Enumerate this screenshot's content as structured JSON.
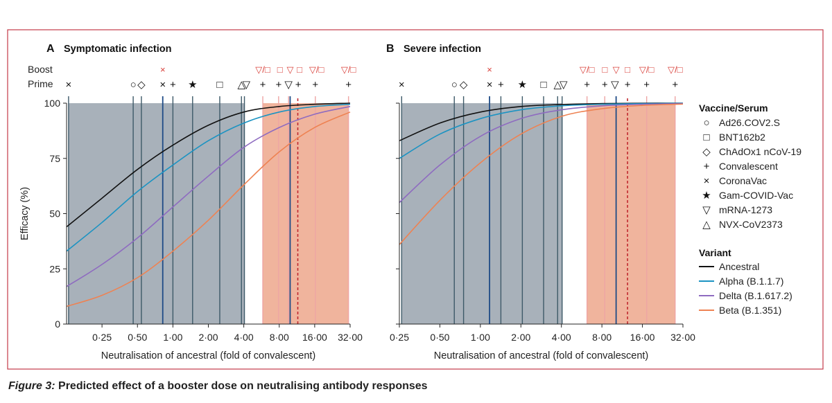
{
  "caption": {
    "figure_label": "Figure 3:",
    "text": "Predicted effect of a booster dose on neutralising antibody responses"
  },
  "row_labels": {
    "boost": "Boost",
    "prime": "Prime"
  },
  "colors": {
    "grey_band": "#a8b1ba",
    "orange_band": "#f0b49d",
    "frame": "#c33a48",
    "marker_red": "#d9403a",
    "ancestral": "#111111",
    "alpha": "#1b93c2",
    "delta": "#8e6bc0",
    "beta": "#ee8252",
    "vline": "#3d5968",
    "vline_strong": "#1e4b86",
    "vline_orange": "#eea5a4",
    "dashed": "#c0282f"
  },
  "legend": {
    "vaccine_title": "Vaccine/Serum",
    "vaccine_items": [
      {
        "label": "Ad26.COV2.S",
        "icon": "circle-icon"
      },
      {
        "label": "BNT162b2",
        "icon": "square-icon"
      },
      {
        "label": "ChAdOx1 nCoV-19",
        "icon": "diamond-icon"
      },
      {
        "label": "Convalescent",
        "icon": "plus-icon"
      },
      {
        "label": "CoronaVac",
        "icon": "cross-icon"
      },
      {
        "label": "Gam-COVID-Vac",
        "icon": "star-icon"
      },
      {
        "label": "mRNA-1273",
        "icon": "triangle-down-icon"
      },
      {
        "label": "NVX-CoV2373",
        "icon": "triangle-up-icon"
      }
    ],
    "variant_title": "Variant",
    "variant_items": [
      {
        "label": "Ancestral",
        "color": "#111111"
      },
      {
        "label": "Alpha (B.1.1.7)",
        "color": "#1b93c2"
      },
      {
        "label": "Delta (B.1.617.2)",
        "color": "#8e6bc0"
      },
      {
        "label": "Beta (B.1.351)",
        "color": "#ee8252"
      }
    ]
  },
  "chart_data": [
    {
      "type": "line",
      "panel_letter": "A",
      "title": "Symptomatic infection",
      "xlabel": "Neutralisation of ancestral (fold of convalescent)",
      "ylabel": "Efficacy (%)",
      "x_scale": "log2",
      "xlim": [
        0.125,
        32
      ],
      "ylim": [
        0,
        100
      ],
      "x_ticks": [
        0.25,
        0.5,
        1,
        2,
        4,
        8,
        16,
        32
      ],
      "x_tick_labels": [
        "0·25",
        "0·50",
        "1·00",
        "2·00",
        "4·00",
        "8·00",
        "16·00",
        "32·00"
      ],
      "y_ticks": [
        0,
        25,
        50,
        75,
        100
      ],
      "y_tick_labels": [
        "0",
        "25",
        "50",
        "75",
        "100"
      ],
      "grey_band": [
        0.13,
        4.05
      ],
      "orange_band": [
        5.8,
        31
      ],
      "dashed_line": 11.5,
      "series": [
        {
          "name": "Ancestral",
          "x": [
            0.125,
            0.25,
            0.5,
            1,
            2,
            4,
            8,
            16,
            32
          ],
          "y": [
            44,
            57,
            70,
            81,
            90,
            96,
            98.5,
            99.5,
            100
          ]
        },
        {
          "name": "Alpha (B.1.1.7)",
          "x": [
            0.125,
            0.25,
            0.5,
            1,
            2,
            4,
            8,
            16,
            32
          ],
          "y": [
            33,
            46,
            60,
            72,
            83,
            91,
            96,
            98.5,
            99.5
          ]
        },
        {
          "name": "Delta (B.1.617.2)",
          "x": [
            0.125,
            0.25,
            0.5,
            1,
            2,
            4,
            8,
            16,
            32
          ],
          "y": [
            17,
            27,
            39,
            53,
            67,
            80,
            89,
            95,
            98.5
          ]
        },
        {
          "name": "Beta (B.1.351)",
          "x": [
            0.125,
            0.25,
            0.5,
            1,
            2,
            4,
            8,
            16,
            32
          ],
          "y": [
            8,
            13,
            21,
            33,
            47,
            63,
            78,
            89,
            96
          ]
        }
      ],
      "prime_markers": [
        {
          "x": 0.13,
          "symbol": "×",
          "vaccine": "CoronaVac"
        },
        {
          "x": 0.46,
          "symbol": "○",
          "vaccine": "Ad26.COV2.S"
        },
        {
          "x": 0.54,
          "symbol": "◇",
          "vaccine": "ChAdOx1 nCoV-19"
        },
        {
          "x": 0.82,
          "symbol": "×",
          "vaccine": "CoronaVac"
        },
        {
          "x": 1.0,
          "symbol": "+",
          "vaccine": "Convalescent"
        },
        {
          "x": 1.47,
          "symbol": "★",
          "vaccine": "Gam-COVID-Vac"
        },
        {
          "x": 2.5,
          "symbol": "□",
          "vaccine": "BNT162b2"
        },
        {
          "x": 3.82,
          "symbol": "△",
          "vaccine": "NVX-CoV2373"
        },
        {
          "x": 4.2,
          "symbol": "▽",
          "vaccine": "mRNA-1273"
        },
        {
          "x": 5.8,
          "symbol": "+",
          "vaccine": "Convalescent"
        },
        {
          "x": 7.9,
          "symbol": "+",
          "vaccine": "Convalescent"
        },
        {
          "x": 9.6,
          "symbol": "▽",
          "vaccine": "mRNA-1273"
        },
        {
          "x": 11.6,
          "symbol": "+",
          "vaccine": "Convalescent"
        },
        {
          "x": 16.2,
          "symbol": "+",
          "vaccine": "Convalescent"
        },
        {
          "x": 31,
          "symbol": "+",
          "vaccine": "Convalescent"
        }
      ],
      "boost_markers": [
        {
          "x": 0.82,
          "symbol": "×"
        },
        {
          "x": 5.8,
          "symbol": "▽/□"
        },
        {
          "x": 8.1,
          "symbol": "□"
        },
        {
          "x": 9.9,
          "symbol": "▽"
        },
        {
          "x": 11.9,
          "symbol": "□"
        },
        {
          "x": 16.6,
          "symbol": "▽/□"
        },
        {
          "x": 31,
          "symbol": "▽/□"
        }
      ],
      "vlines": [
        {
          "x": 0.13,
          "style": "grey"
        },
        {
          "x": 0.46,
          "style": "grey"
        },
        {
          "x": 0.54,
          "style": "grey"
        },
        {
          "x": 0.82,
          "style": "strong"
        },
        {
          "x": 1.0,
          "style": "grey"
        },
        {
          "x": 1.47,
          "style": "grey"
        },
        {
          "x": 2.5,
          "style": "grey"
        },
        {
          "x": 3.82,
          "style": "grey"
        },
        {
          "x": 4.05,
          "style": "grey"
        },
        {
          "x": 5.8,
          "style": "orange"
        },
        {
          "x": 7.9,
          "style": "orange"
        },
        {
          "x": 9.6,
          "style": "orange"
        },
        {
          "x": 9.9,
          "style": "strong"
        },
        {
          "x": 16.2,
          "style": "orange"
        },
        {
          "x": 31,
          "style": "orange"
        }
      ]
    },
    {
      "type": "line",
      "panel_letter": "B",
      "title": "Severe infection",
      "xlabel": "Neutralisation of ancestral (fold of convalescent)",
      "ylabel": "",
      "x_scale": "log2",
      "xlim": [
        0.25,
        32
      ],
      "ylim": [
        0,
        100
      ],
      "x_ticks": [
        0.25,
        0.5,
        1,
        2,
        4,
        8,
        16,
        32
      ],
      "x_tick_labels": [
        "0·25",
        "0·50",
        "1·00",
        "2·00",
        "4·00",
        "8·00",
        "16·00",
        "32·00"
      ],
      "y_ticks": [
        0,
        25,
        50,
        75,
        100
      ],
      "grey_band": [
        0.26,
        4.05
      ],
      "orange_band": [
        6.2,
        28
      ],
      "dashed_line": 12.4,
      "series": [
        {
          "name": "Ancestral",
          "x": [
            0.25,
            0.5,
            1,
            2,
            4,
            8,
            16,
            32
          ],
          "y": [
            83,
            91,
            96,
            98.5,
            99.4,
            99.8,
            100,
            100
          ]
        },
        {
          "name": "Alpha (B.1.1.7)",
          "x": [
            0.25,
            0.5,
            1,
            2,
            4,
            8,
            16,
            32
          ],
          "y": [
            75,
            86,
            93,
            97,
            98.8,
            99.5,
            99.8,
            100
          ]
        },
        {
          "name": "Delta (B.1.617.2)",
          "x": [
            0.25,
            0.5,
            1,
            2,
            4,
            8,
            16,
            32
          ],
          "y": [
            55,
            72,
            85,
            93,
            97,
            98.8,
            99.5,
            99.8
          ]
        },
        {
          "name": "Beta (B.1.351)",
          "x": [
            0.25,
            0.5,
            1,
            2,
            4,
            8,
            16,
            32
          ],
          "y": [
            36,
            56,
            73,
            86,
            94,
            97.5,
            99,
            99.6
          ]
        }
      ],
      "prime_markers": [
        {
          "x": 0.26,
          "symbol": "×"
        },
        {
          "x": 0.64,
          "symbol": "○"
        },
        {
          "x": 0.75,
          "symbol": "◇"
        },
        {
          "x": 1.17,
          "symbol": "×"
        },
        {
          "x": 1.42,
          "symbol": "+"
        },
        {
          "x": 2.05,
          "symbol": "★"
        },
        {
          "x": 2.95,
          "symbol": "□"
        },
        {
          "x": 3.75,
          "symbol": "△"
        },
        {
          "x": 4.15,
          "symbol": "▽"
        },
        {
          "x": 6.2,
          "symbol": "+"
        },
        {
          "x": 8.4,
          "symbol": "+"
        },
        {
          "x": 10.0,
          "symbol": "▽"
        },
        {
          "x": 12.4,
          "symbol": "+"
        },
        {
          "x": 17.2,
          "symbol": "+"
        },
        {
          "x": 28,
          "symbol": "+"
        }
      ],
      "boost_markers": [
        {
          "x": 1.17,
          "symbol": "×"
        },
        {
          "x": 6.2,
          "symbol": "▽/□"
        },
        {
          "x": 8.4,
          "symbol": "□"
        },
        {
          "x": 10.2,
          "symbol": "▽"
        },
        {
          "x": 12.4,
          "symbol": "□"
        },
        {
          "x": 17.2,
          "symbol": "▽/□"
        },
        {
          "x": 28,
          "symbol": "▽/□"
        }
      ],
      "vlines": [
        {
          "x": 0.26,
          "style": "grey"
        },
        {
          "x": 0.64,
          "style": "grey"
        },
        {
          "x": 0.75,
          "style": "grey"
        },
        {
          "x": 1.17,
          "style": "strong"
        },
        {
          "x": 1.42,
          "style": "grey"
        },
        {
          "x": 2.05,
          "style": "grey"
        },
        {
          "x": 2.95,
          "style": "grey"
        },
        {
          "x": 3.75,
          "style": "grey"
        },
        {
          "x": 4.05,
          "style": "grey"
        },
        {
          "x": 6.2,
          "style": "orange"
        },
        {
          "x": 8.4,
          "style": "orange"
        },
        {
          "x": 10.2,
          "style": "strong"
        },
        {
          "x": 17.2,
          "style": "orange"
        },
        {
          "x": 28,
          "style": "orange"
        }
      ]
    }
  ]
}
